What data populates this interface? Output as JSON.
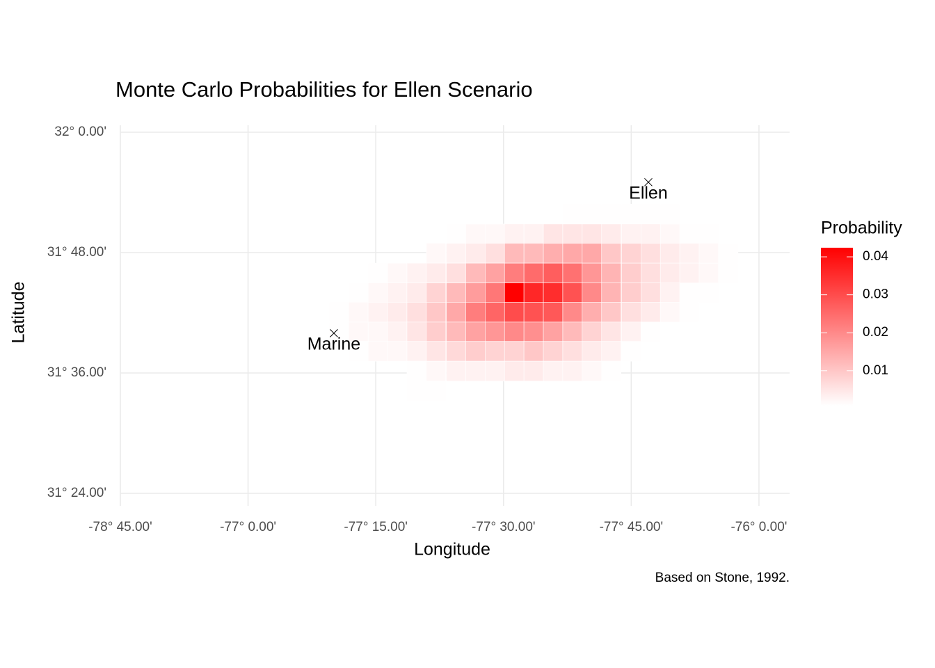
{
  "chart_data": {
    "type": "heatmap",
    "title": "Monte Carlo Probabilities for Ellen Scenario",
    "x_label": "Longitude",
    "y_label": "Latitude",
    "caption": "Based on Stone, 1992.",
    "legend_title": "Probability",
    "low_color": "#ffffff",
    "high_color": "#ff0000",
    "grid": true,
    "xlim": [
      -77.25,
      -75.94
    ],
    "ylim": [
      31.4,
      32.0
    ],
    "xticks": [
      {
        "value": -77.25,
        "label": "-78° 45.00'"
      },
      {
        "value": -77.0,
        "label": "-77° 0.00'"
      },
      {
        "value": -76.75,
        "label": "-77° 15.00'"
      },
      {
        "value": -76.5,
        "label": "-77° 30.00'"
      },
      {
        "value": -76.25,
        "label": "-77° 45.00'"
      },
      {
        "value": -76.0,
        "label": "-76° 0.00'"
      }
    ],
    "yticks": [
      {
        "value": 31.4,
        "label": "31° 24.00'"
      },
      {
        "value": 31.6,
        "label": "31° 36.00'"
      },
      {
        "value": 31.8,
        "label": "31° 48.00'"
      },
      {
        "value": 32.0,
        "label": "32° 0.00'"
      }
    ],
    "zlim": [
      0.0008,
      0.0424
    ],
    "zticks": [
      0.01,
      0.02,
      0.03,
      0.04
    ],
    "x": [
      -76.822,
      -76.784,
      -76.746,
      -76.708,
      -76.67,
      -76.632,
      -76.593,
      -76.555,
      -76.517,
      -76.479,
      -76.441,
      -76.403,
      -76.365,
      -76.327,
      -76.289,
      -76.25,
      -76.212,
      -76.174,
      -76.136,
      -76.098,
      -76.06
    ],
    "y": [
      31.864,
      31.831,
      31.799,
      31.766,
      31.733,
      31.701,
      31.668,
      31.636,
      31.603,
      31.57
    ],
    "z": [
      [
        null,
        null,
        null,
        null,
        null,
        null,
        null,
        null,
        null,
        null,
        null,
        null,
        0.001,
        0.001,
        0.001,
        0.001,
        0.001,
        0.001,
        null,
        null,
        null
      ],
      [
        null,
        null,
        null,
        null,
        null,
        null,
        0.001,
        0.002,
        0.002,
        0.003,
        0.003,
        0.005,
        0.005,
        0.005,
        0.004,
        0.003,
        0.003,
        0.002,
        0.001,
        0.001,
        null
      ],
      [
        null,
        null,
        null,
        null,
        null,
        0.002,
        0.003,
        0.004,
        0.006,
        0.012,
        0.012,
        0.014,
        0.015,
        0.015,
        0.01,
        0.008,
        0.006,
        0.004,
        0.003,
        0.002,
        0.001
      ],
      [
        null,
        null,
        0.001,
        0.002,
        0.003,
        0.004,
        0.006,
        0.012,
        0.016,
        0.022,
        0.025,
        0.027,
        0.024,
        0.018,
        0.013,
        0.009,
        0.006,
        0.004,
        0.003,
        0.002,
        0.001
      ],
      [
        null,
        0.001,
        0.002,
        0.003,
        0.004,
        0.008,
        0.012,
        0.017,
        0.023,
        0.043,
        0.036,
        0.035,
        0.029,
        0.02,
        0.013,
        0.009,
        0.006,
        0.003,
        0.001,
        0.001,
        null
      ],
      [
        0.001,
        0.002,
        0.003,
        0.004,
        0.006,
        0.01,
        0.015,
        0.022,
        0.026,
        0.03,
        0.029,
        0.028,
        0.02,
        0.014,
        0.01,
        0.006,
        0.004,
        0.002,
        0.001,
        null,
        null
      ],
      [
        0.001,
        0.002,
        0.002,
        0.003,
        0.005,
        0.009,
        0.012,
        0.016,
        0.018,
        0.02,
        0.019,
        0.016,
        0.012,
        0.008,
        0.005,
        0.003,
        0.001,
        null,
        null,
        null,
        null
      ],
      [
        null,
        0.001,
        0.002,
        0.002,
        0.003,
        0.005,
        0.007,
        0.009,
        0.008,
        0.008,
        0.01,
        0.008,
        0.006,
        0.004,
        0.003,
        0.001,
        null,
        null,
        null,
        null,
        null
      ],
      [
        null,
        null,
        null,
        null,
        0.001,
        0.002,
        0.003,
        0.003,
        0.003,
        0.004,
        0.004,
        0.003,
        0.003,
        0.002,
        0.001,
        null,
        null,
        null,
        null,
        null,
        null
      ],
      [
        null,
        null,
        null,
        null,
        0.001,
        0.001,
        null,
        null,
        null,
        null,
        null,
        null,
        null,
        null,
        null,
        null,
        null,
        null,
        null,
        null,
        null
      ]
    ],
    "points": [
      {
        "name": "Marine",
        "lon": -76.832,
        "lat": 31.666
      },
      {
        "name": "Ellen",
        "lon": -76.2165,
        "lat": 31.917
      }
    ]
  }
}
